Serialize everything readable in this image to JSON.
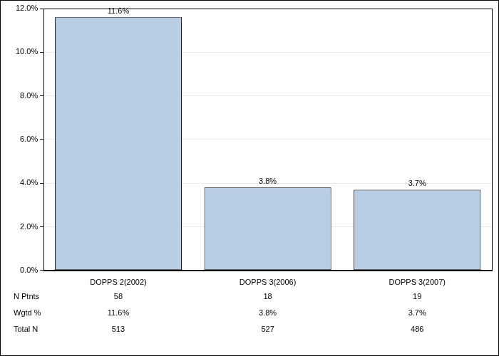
{
  "chart_data": {
    "type": "bar",
    "categories": [
      "DOPPS 2(2002)",
      "DOPPS 3(2006)",
      "DOPPS 3(2007)"
    ],
    "values": [
      11.6,
      3.8,
      3.7
    ],
    "value_labels": [
      "11.6%",
      "3.8%",
      "3.7%"
    ],
    "color": "#b9cde5",
    "ylim": [
      0,
      12
    ],
    "yticks": [
      {
        "value": 0,
        "label": "0.0%"
      },
      {
        "value": 2,
        "label": "2.0%"
      },
      {
        "value": 4,
        "label": "4.0%"
      },
      {
        "value": 6,
        "label": "6.0%"
      },
      {
        "value": 8,
        "label": "8.0%"
      },
      {
        "value": 10,
        "label": "10.0%"
      },
      {
        "value": 12,
        "label": "12.0%"
      }
    ],
    "grid": true,
    "data_labels": true,
    "table": {
      "rows": [
        {
          "label": "N Ptnts",
          "values": [
            58,
            18,
            19
          ]
        },
        {
          "label": "Wgtd %",
          "values": [
            11.6,
            3.8,
            3.7
          ],
          "value_labels": [
            "11.6%",
            "3.8%",
            "3.7%"
          ]
        },
        {
          "label": "Total N",
          "values": [
            513,
            527,
            486
          ]
        }
      ]
    }
  }
}
